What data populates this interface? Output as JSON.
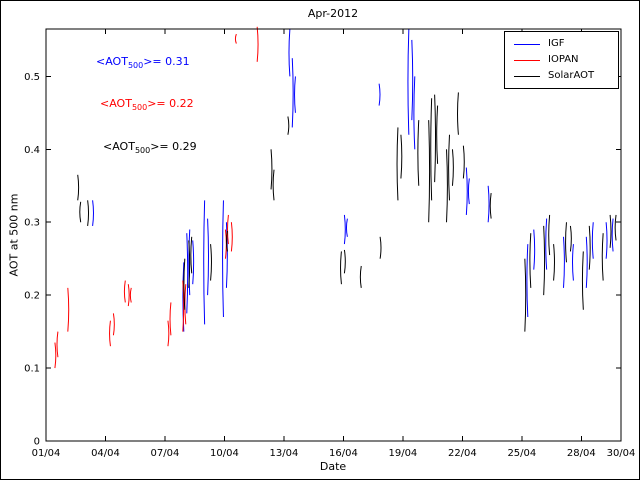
{
  "legend": {
    "items": [
      {
        "label": "IGF",
        "color": "#0000ff"
      },
      {
        "label": "IOPAN",
        "color": "#ff0000"
      },
      {
        "label": "SolarAOT",
        "color": "#000000"
      }
    ]
  },
  "annotations": [
    {
      "prefix": "<AOT",
      "sub": "500",
      "suffix": ">= 0.31",
      "value": 0.31,
      "color": "#0000ff"
    },
    {
      "prefix": "<AOT",
      "sub": "500",
      "suffix": ">= 0.22",
      "value": 0.22,
      "color": "#ff0000"
    },
    {
      "prefix": "<AOT",
      "sub": "500",
      "suffix": ">= 0.29",
      "value": 0.29,
      "color": "#000000"
    }
  ],
  "chart_data": {
    "type": "line",
    "title": "Apr-2012",
    "xlabel": "Date",
    "ylabel": "AOT at 500 nm",
    "xlim_days": [
      1,
      30
    ],
    "ylim": [
      0,
      0.565
    ],
    "grid": false,
    "legend_position": "top-right",
    "xticks": {
      "days": [
        1,
        4,
        7,
        10,
        13,
        16,
        19,
        22,
        25,
        28,
        30
      ],
      "labels": [
        "01/04",
        "04/04",
        "07/04",
        "10/04",
        "13/04",
        "16/04",
        "19/04",
        "22/04",
        "25/04",
        "28/04",
        "30/04"
      ]
    },
    "yticks": {
      "values": [
        0,
        0.1,
        0.2,
        0.3,
        0.4,
        0.5
      ],
      "labels": [
        "0",
        "0.1",
        "0.2",
        "0.3",
        "0.4",
        "0.5"
      ]
    },
    "series": [
      {
        "name": "IGF",
        "color": "#0000ff",
        "mean_aot_500": 0.31,
        "segments": [
          [
            3.35,
            0.295,
            0.33
          ],
          [
            7.95,
            0.15,
            0.245
          ],
          [
            8.1,
            0.175,
            0.285
          ],
          [
            8.25,
            0.2,
            0.29
          ],
          [
            8.4,
            0.215,
            0.275
          ],
          [
            9.0,
            0.16,
            0.33
          ],
          [
            9.15,
            0.2,
            0.305
          ],
          [
            9.95,
            0.17,
            0.33
          ],
          [
            10.1,
            0.21,
            0.3
          ],
          [
            13.3,
            0.5,
            0.565
          ],
          [
            13.42,
            0.43,
            0.525
          ],
          [
            13.58,
            0.45,
            0.5
          ],
          [
            16.05,
            0.27,
            0.31
          ],
          [
            16.2,
            0.28,
            0.305
          ],
          [
            17.8,
            0.46,
            0.49
          ],
          [
            19.3,
            0.42,
            0.565
          ],
          [
            19.45,
            0.44,
            0.55
          ],
          [
            19.6,
            0.4,
            0.5
          ],
          [
            22.2,
            0.31,
            0.375
          ],
          [
            22.35,
            0.325,
            0.36
          ],
          [
            23.3,
            0.3,
            0.35
          ],
          [
            25.3,
            0.17,
            0.27
          ],
          [
            25.6,
            0.235,
            0.29
          ],
          [
            26.25,
            0.235,
            0.305
          ],
          [
            27.1,
            0.21,
            0.28
          ],
          [
            27.6,
            0.22,
            0.27
          ],
          [
            28.25,
            0.21,
            0.28
          ],
          [
            28.6,
            0.25,
            0.3
          ],
          [
            29.25,
            0.25,
            0.3
          ],
          [
            29.6,
            0.26,
            0.305
          ]
        ]
      },
      {
        "name": "IOPAN",
        "color": "#ff0000",
        "mean_aot_500": 0.22,
        "segments": [
          [
            1.45,
            0.1,
            0.135
          ],
          [
            1.6,
            0.115,
            0.15
          ],
          [
            2.1,
            0.15,
            0.21
          ],
          [
            4.25,
            0.13,
            0.165
          ],
          [
            4.4,
            0.145,
            0.175
          ],
          [
            5.0,
            0.19,
            0.22
          ],
          [
            5.15,
            0.185,
            0.215
          ],
          [
            5.3,
            0.19,
            0.21
          ],
          [
            7.15,
            0.13,
            0.165
          ],
          [
            7.3,
            0.145,
            0.19
          ],
          [
            7.9,
            0.15,
            0.22
          ],
          [
            8.05,
            0.16,
            0.215
          ],
          [
            10.05,
            0.25,
            0.29
          ],
          [
            10.2,
            0.27,
            0.31
          ],
          [
            10.35,
            0.26,
            0.3
          ],
          [
            10.6,
            0.545,
            0.558
          ],
          [
            11.65,
            0.52,
            0.568
          ]
        ]
      },
      {
        "name": "SolarAOT",
        "color": "#000000",
        "mean_aot_500": 0.29,
        "segments": [
          [
            2.6,
            0.33,
            0.365
          ],
          [
            2.75,
            0.3,
            0.328
          ],
          [
            3.1,
            0.295,
            0.33
          ],
          [
            8.0,
            0.18,
            0.25
          ],
          [
            8.2,
            0.21,
            0.275
          ],
          [
            8.35,
            0.23,
            0.28
          ],
          [
            9.3,
            0.22,
            0.27
          ],
          [
            10.15,
            0.26,
            0.288
          ],
          [
            12.35,
            0.345,
            0.4
          ],
          [
            12.5,
            0.33,
            0.372
          ],
          [
            13.2,
            0.42,
            0.445
          ],
          [
            15.9,
            0.215,
            0.26
          ],
          [
            16.05,
            0.23,
            0.262
          ],
          [
            16.9,
            0.21,
            0.24
          ],
          [
            17.85,
            0.25,
            0.28
          ],
          [
            18.75,
            0.33,
            0.43
          ],
          [
            18.9,
            0.36,
            0.42
          ],
          [
            19.8,
            0.35,
            0.44
          ],
          [
            20.3,
            0.3,
            0.44
          ],
          [
            20.45,
            0.33,
            0.47
          ],
          [
            20.6,
            0.355,
            0.475
          ],
          [
            20.75,
            0.38,
            0.46
          ],
          [
            21.2,
            0.3,
            0.4
          ],
          [
            21.35,
            0.33,
            0.42
          ],
          [
            21.5,
            0.35,
            0.4
          ],
          [
            21.8,
            0.42,
            0.478
          ],
          [
            22.05,
            0.36,
            0.405
          ],
          [
            23.45,
            0.305,
            0.34
          ],
          [
            25.15,
            0.15,
            0.25
          ],
          [
            25.45,
            0.21,
            0.285
          ],
          [
            26.1,
            0.2,
            0.295
          ],
          [
            26.4,
            0.255,
            0.31
          ],
          [
            26.6,
            0.22,
            0.27
          ],
          [
            27.25,
            0.245,
            0.3
          ],
          [
            27.45,
            0.26,
            0.295
          ],
          [
            28.1,
            0.18,
            0.26
          ],
          [
            28.4,
            0.235,
            0.295
          ],
          [
            29.1,
            0.22,
            0.285
          ],
          [
            29.45,
            0.265,
            0.31
          ],
          [
            29.75,
            0.275,
            0.31
          ]
        ]
      }
    ]
  }
}
